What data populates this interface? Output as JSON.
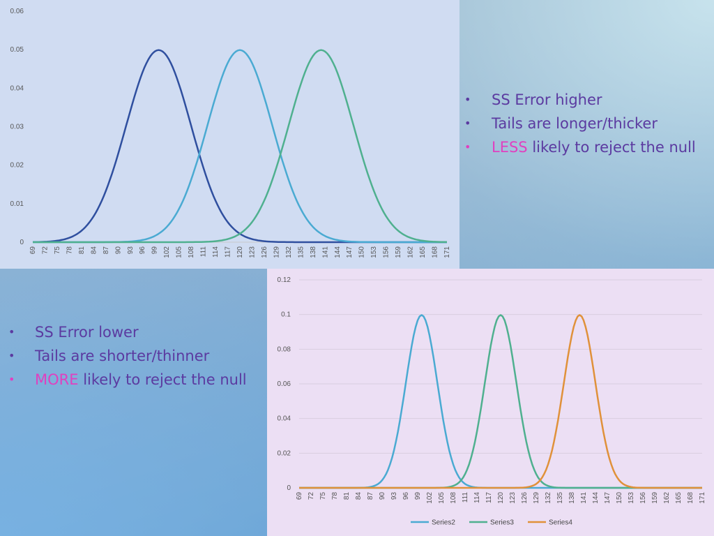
{
  "colors": {
    "series1": "#2f4f9f",
    "series2": "#4aaad2",
    "series3": "#4fb08f",
    "series4": "#e0913a",
    "bullet_text": "#5b3aa0",
    "highlight": "#e040c0"
  },
  "bullets_right": {
    "items": [
      {
        "highlight": "",
        "text": "SS Error higher"
      },
      {
        "highlight": "",
        "text": "Tails are longer/thicker"
      },
      {
        "highlight": "LESS",
        "text": " likely to reject the null"
      }
    ]
  },
  "bullets_left": {
    "items": [
      {
        "highlight": "",
        "text": "SS Error lower"
      },
      {
        "highlight": "",
        "text": "Tails are shorter/thinner"
      },
      {
        "highlight": "MORE",
        "text": " likely to reject the null"
      }
    ]
  },
  "chart_data": [
    {
      "type": "line",
      "title": "",
      "xlabel": "",
      "ylabel": "",
      "xlim": [
        69,
        171
      ],
      "x_tick_labels": [
        "69",
        "72",
        "75",
        "78",
        "81",
        "84",
        "87",
        "90",
        "93",
        "96",
        "99",
        "102",
        "105",
        "108",
        "111",
        "114",
        "117",
        "120",
        "123",
        "126",
        "129",
        "132",
        "135",
        "138",
        "141",
        "144",
        "147",
        "150",
        "153",
        "156",
        "159",
        "162",
        "165",
        "168",
        "171"
      ],
      "ylim": [
        0,
        0.06
      ],
      "y_tick_labels": [
        "0",
        "0.01",
        "0.02",
        "0.03",
        "0.04",
        "0.05",
        "0.06"
      ],
      "grid": false,
      "legend": "none",
      "series": [
        {
          "color": "series1",
          "mean": 100,
          "sd": 8,
          "peak": 0.0499
        },
        {
          "color": "series2",
          "mean": 120,
          "sd": 8,
          "peak": 0.0499
        },
        {
          "color": "series3",
          "mean": 140,
          "sd": 8,
          "peak": 0.0499
        }
      ]
    },
    {
      "type": "line",
      "title": "",
      "xlabel": "",
      "ylabel": "",
      "xlim": [
        69,
        171
      ],
      "x_tick_labels": [
        "69",
        "72",
        "75",
        "78",
        "81",
        "84",
        "87",
        "90",
        "93",
        "96",
        "99",
        "102",
        "105",
        "108",
        "111",
        "114",
        "117",
        "120",
        "123",
        "126",
        "129",
        "132",
        "135",
        "138",
        "141",
        "144",
        "147",
        "150",
        "153",
        "156",
        "159",
        "162",
        "165",
        "168",
        "171"
      ],
      "ylim": [
        0,
        0.12
      ],
      "y_tick_labels": [
        "0",
        "0.02",
        "0.04",
        "0.06",
        "0.08",
        "0.1",
        "0.12"
      ],
      "grid": true,
      "legend": "bottom",
      "series": [
        {
          "name": "Series2",
          "color": "series2",
          "mean": 100,
          "sd": 4,
          "peak": 0.0997
        },
        {
          "name": "Series3",
          "color": "series3",
          "mean": 120,
          "sd": 4,
          "peak": 0.0997
        },
        {
          "name": "Series4",
          "color": "series4",
          "mean": 140,
          "sd": 4,
          "peak": 0.0997
        }
      ]
    }
  ]
}
